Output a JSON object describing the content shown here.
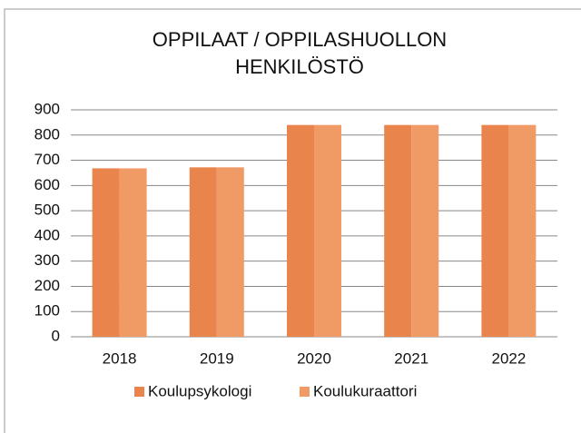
{
  "chart_data": {
    "type": "bar",
    "title": [
      "OPPILAAT / OPPILASHUOLLON",
      "HENKILÖSTÖ"
    ],
    "categories": [
      "2018",
      "2019",
      "2020",
      "2021",
      "2022"
    ],
    "series": [
      {
        "name": "Koulupsykologi",
        "color": "#e8844c",
        "values": [
          668,
          672,
          840,
          840,
          840
        ]
      },
      {
        "name": "Koulukuraattori",
        "color": "#f09a66",
        "values": [
          668,
          672,
          840,
          840,
          840
        ]
      }
    ],
    "ylim": [
      0,
      900
    ],
    "yticks": [
      0,
      100,
      200,
      300,
      400,
      500,
      600,
      700,
      800,
      900
    ],
    "grid": true,
    "legend": "bottom"
  }
}
